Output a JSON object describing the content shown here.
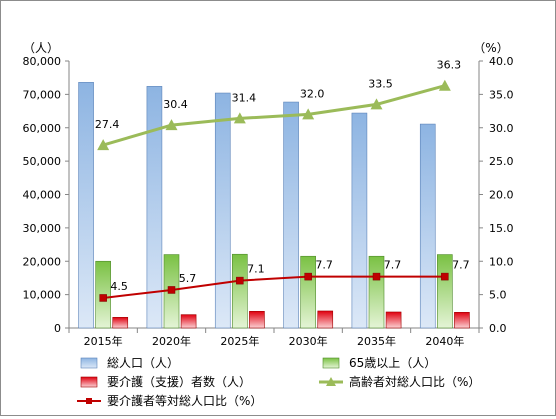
{
  "chart_data": {
    "type": "bar",
    "categories": [
      "2015年",
      "2020年",
      "2025年",
      "2030年",
      "2035年",
      "2040年"
    ],
    "y_left": {
      "unit": "（人）",
      "range": [
        0,
        80000
      ],
      "step": 10000,
      "tick_labels": [
        "0",
        "10,000",
        "20,000",
        "30,000",
        "40,000",
        "50,000",
        "60,000",
        "70,000",
        "80,000"
      ]
    },
    "y_right": {
      "unit": "（%）",
      "range": [
        0,
        40
      ],
      "step": 5,
      "tick_labels": [
        "0.0",
        "5.0",
        "10.0",
        "15.0",
        "20.0",
        "25.0",
        "30.0",
        "35.0",
        "40.0"
      ]
    },
    "series": [
      {
        "name": "総人口（人）",
        "type": "bar",
        "axis": "left",
        "color": "#8db4e2",
        "values": [
          73600,
          72400,
          70400,
          67700,
          64400,
          61100
        ]
      },
      {
        "name": "65歳以上（人）",
        "type": "bar",
        "axis": "left",
        "color": "#7ac143",
        "values": [
          20000,
          22000,
          22100,
          21500,
          21500,
          22000
        ]
      },
      {
        "name": "要介護（支援）者数（人）",
        "type": "bar",
        "axis": "left",
        "color": "#e0000f",
        "values": [
          3200,
          4000,
          5000,
          5100,
          4800,
          4700
        ]
      },
      {
        "name": "高齢者対総人口比（%）",
        "type": "line",
        "axis": "right",
        "color": "#9bbb59",
        "values": [
          27.4,
          30.4,
          31.4,
          32.0,
          33.5,
          36.3
        ],
        "labels": [
          "27.4",
          "30.4",
          "31.4",
          "32.0",
          "33.5",
          "36.3"
        ]
      },
      {
        "name": "要介護者等対総人口比（%）",
        "type": "line",
        "axis": "right",
        "color": "#c00000",
        "values": [
          4.5,
          5.7,
          7.1,
          7.7,
          7.7,
          7.7
        ],
        "labels": [
          "4.5",
          "5.7",
          "7.1",
          "7.7",
          "7.7",
          "7.7"
        ]
      }
    ],
    "legend": "bottom",
    "grid": false
  }
}
